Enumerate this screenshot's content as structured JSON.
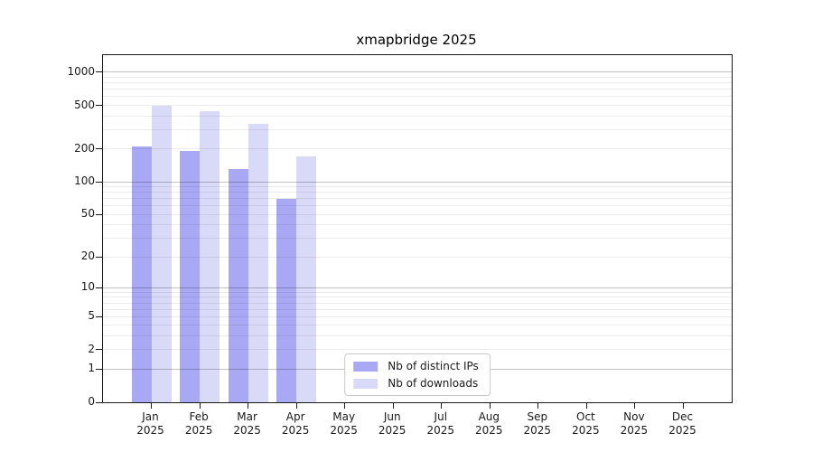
{
  "chart_data": {
    "type": "bar",
    "title": "xmapbridge 2025",
    "categories": [
      "Jan",
      "Feb",
      "Mar",
      "Apr",
      "May",
      "Jun",
      "Jul",
      "Aug",
      "Sep",
      "Oct",
      "Nov",
      "Dec"
    ],
    "year": "2025",
    "series": [
      {
        "name": "Nb of distinct IPs",
        "color": "#a8a8f5",
        "values": [
          210,
          190,
          130,
          70,
          0,
          0,
          0,
          0,
          0,
          0,
          0,
          0
        ]
      },
      {
        "name": "Nb of downloads",
        "color": "#d9d9f8",
        "values": [
          500,
          440,
          340,
          170,
          0,
          0,
          0,
          0,
          0,
          0,
          0,
          0
        ]
      }
    ],
    "y_ticks": [
      0,
      1,
      2,
      5,
      10,
      20,
      50,
      100,
      200,
      500,
      1000
    ],
    "scale": "log1p",
    "ylim": [
      0,
      1430
    ],
    "grid": true,
    "legend_position": "lower center",
    "xlabel": "",
    "ylabel": ""
  }
}
